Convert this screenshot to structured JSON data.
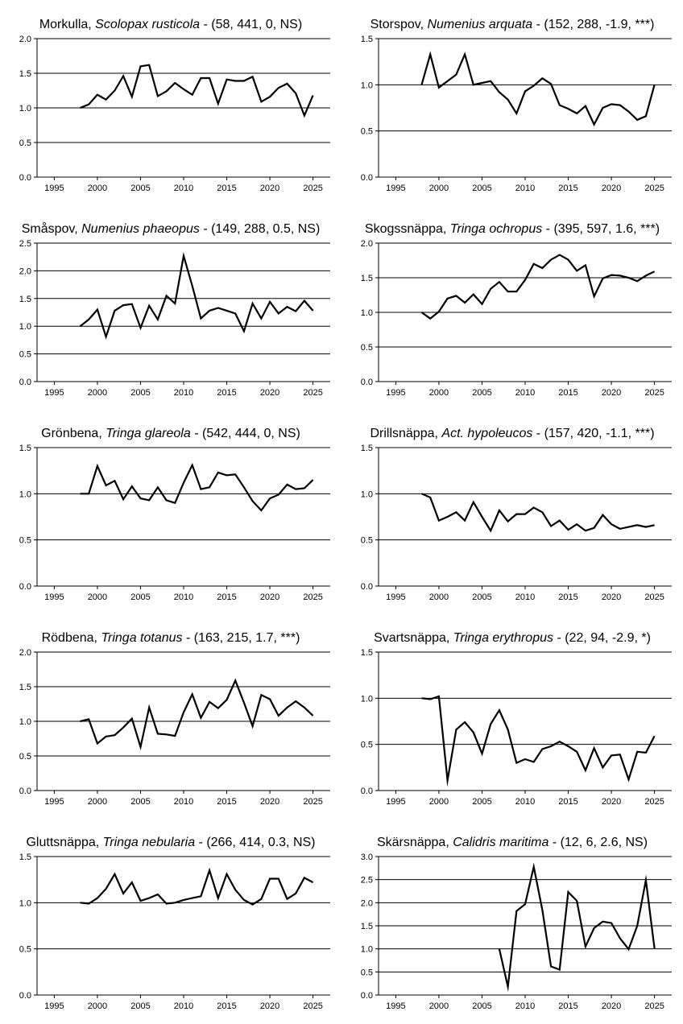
{
  "chart_data": [
    {
      "type": "line",
      "title": {
        "common": "Morkulla",
        "scientific": "Scolopax rusticola",
        "stats": "(58, 441, 0, NS)"
      },
      "ylim": [
        0,
        2
      ],
      "yticks": [
        0,
        0.5,
        1,
        1.5,
        2
      ],
      "ytick_labels": [
        "0.0",
        "0.5",
        "1.0",
        "1.5",
        "2.0"
      ],
      "xlim": [
        1993,
        2027
      ],
      "xticks": [
        1995,
        2000,
        2005,
        2010,
        2015,
        2020,
        2025
      ],
      "xtick_labels": [
        "1995",
        "2000",
        "2005",
        "2010",
        "2015",
        "2020",
        "2025"
      ],
      "grid": "horizontal",
      "x": [
        1998,
        1999,
        2000,
        2001,
        2002,
        2003,
        2004,
        2005,
        2006,
        2007,
        2008,
        2009,
        2010,
        2011,
        2012,
        2013,
        2014,
        2015,
        2016,
        2017,
        2018,
        2019,
        2020,
        2021,
        2022,
        2023,
        2024,
        2025
      ],
      "values": [
        1.0,
        1.05,
        1.19,
        1.12,
        1.25,
        1.46,
        1.16,
        1.6,
        1.62,
        1.17,
        1.24,
        1.36,
        1.27,
        1.19,
        1.43,
        1.43,
        1.06,
        1.41,
        1.39,
        1.39,
        1.45,
        1.09,
        1.16,
        1.29,
        1.35,
        1.21,
        0.89,
        1.18
      ]
    },
    {
      "type": "line",
      "title": {
        "common": "Storspov",
        "scientific": "Numenius arquata",
        "stats": "(152, 288, -1.9, ***)"
      },
      "ylim": [
        0,
        1.5
      ],
      "yticks": [
        0,
        0.5,
        1,
        1.5
      ],
      "ytick_labels": [
        "0.0",
        "0.5",
        "1.0",
        "1.5"
      ],
      "xlim": [
        1993,
        2027
      ],
      "xticks": [
        1995,
        2000,
        2005,
        2010,
        2015,
        2020,
        2025
      ],
      "xtick_labels": [
        "1995",
        "2000",
        "2005",
        "2010",
        "2015",
        "2020",
        "2025"
      ],
      "grid": "horizontal",
      "x": [
        1998,
        1999,
        2000,
        2001,
        2002,
        2003,
        2004,
        2005,
        2006,
        2007,
        2008,
        2009,
        2010,
        2011,
        2012,
        2013,
        2014,
        2015,
        2016,
        2017,
        2018,
        2019,
        2020,
        2021,
        2022,
        2023,
        2024,
        2025
      ],
      "values": [
        1.0,
        1.33,
        0.97,
        1.04,
        1.11,
        1.33,
        1.0,
        1.02,
        1.04,
        0.92,
        0.84,
        0.69,
        0.93,
        0.99,
        1.07,
        1.01,
        0.78,
        0.74,
        0.69,
        0.77,
        0.57,
        0.75,
        0.79,
        0.78,
        0.71,
        0.62,
        0.66,
        1.0
      ]
    },
    {
      "type": "line",
      "title": {
        "common": "Småspov",
        "scientific": "Numenius phaeopus",
        "stats": "(149, 288, 0.5, NS)"
      },
      "ylim": [
        0,
        2.5
      ],
      "yticks": [
        0,
        0.5,
        1,
        1.5,
        2,
        2.5
      ],
      "ytick_labels": [
        "0.0",
        "0.5",
        "1.0",
        "1.5",
        "2.0",
        "2.5"
      ],
      "xlim": [
        1993,
        2027
      ],
      "xticks": [
        1995,
        2000,
        2005,
        2010,
        2015,
        2020,
        2025
      ],
      "xtick_labels": [
        "1995",
        "2000",
        "2005",
        "2010",
        "2015",
        "2020",
        "2025"
      ],
      "grid": "horizontal",
      "x": [
        1998,
        1999,
        2000,
        2001,
        2002,
        2003,
        2004,
        2005,
        2006,
        2007,
        2008,
        2009,
        2010,
        2011,
        2012,
        2013,
        2014,
        2015,
        2016,
        2017,
        2018,
        2019,
        2020,
        2021,
        2022,
        2023,
        2024,
        2025
      ],
      "values": [
        1.0,
        1.12,
        1.3,
        0.81,
        1.28,
        1.38,
        1.4,
        0.97,
        1.37,
        1.12,
        1.55,
        1.41,
        2.27,
        1.73,
        1.14,
        1.28,
        1.33,
        1.28,
        1.23,
        0.91,
        1.41,
        1.14,
        1.44,
        1.23,
        1.35,
        1.27,
        1.46,
        1.28
      ]
    },
    {
      "type": "line",
      "title": {
        "common": "Skogssnäppa",
        "scientific": "Tringa ochropus",
        "stats": "(395, 597, 1.6, ***)"
      },
      "ylim": [
        0,
        2
      ],
      "yticks": [
        0,
        0.5,
        1,
        1.5,
        2
      ],
      "ytick_labels": [
        "0.0",
        "0.5",
        "1.0",
        "1.5",
        "2.0"
      ],
      "xlim": [
        1993,
        2027
      ],
      "xticks": [
        1995,
        2000,
        2005,
        2010,
        2015,
        2020,
        2025
      ],
      "xtick_labels": [
        "1995",
        "2000",
        "2005",
        "2010",
        "2015",
        "2020",
        "2025"
      ],
      "grid": "horizontal",
      "x": [
        1998,
        1999,
        2000,
        2001,
        2002,
        2003,
        2004,
        2005,
        2006,
        2007,
        2008,
        2009,
        2010,
        2011,
        2012,
        2013,
        2014,
        2015,
        2016,
        2017,
        2018,
        2019,
        2020,
        2021,
        2022,
        2023,
        2024,
        2025
      ],
      "values": [
        1.0,
        0.91,
        1.01,
        1.2,
        1.24,
        1.14,
        1.26,
        1.12,
        1.34,
        1.44,
        1.3,
        1.3,
        1.47,
        1.7,
        1.64,
        1.76,
        1.83,
        1.76,
        1.6,
        1.68,
        1.23,
        1.49,
        1.54,
        1.53,
        1.5,
        1.45,
        1.53,
        1.59
      ]
    },
    {
      "type": "line",
      "title": {
        "common": "Grönbena",
        "scientific": "Tringa glareola",
        "stats": "(542, 444, 0, NS)"
      },
      "ylim": [
        0,
        1.5
      ],
      "yticks": [
        0,
        0.5,
        1,
        1.5
      ],
      "ytick_labels": [
        "0.0",
        "0.5",
        "1.0",
        "1.5"
      ],
      "xlim": [
        1993,
        2027
      ],
      "xticks": [
        1995,
        2000,
        2005,
        2010,
        2015,
        2020,
        2025
      ],
      "xtick_labels": [
        "1995",
        "2000",
        "2005",
        "2010",
        "2015",
        "2020",
        "2025"
      ],
      "grid": "horizontal",
      "x": [
        1998,
        1999,
        2000,
        2001,
        2002,
        2003,
        2004,
        2005,
        2006,
        2007,
        2008,
        2009,
        2010,
        2011,
        2012,
        2013,
        2014,
        2015,
        2016,
        2017,
        2018,
        2019,
        2020,
        2021,
        2022,
        2023,
        2024,
        2025
      ],
      "values": [
        1.0,
        1.0,
        1.3,
        1.09,
        1.14,
        0.94,
        1.08,
        0.95,
        0.93,
        1.07,
        0.93,
        0.9,
        1.12,
        1.31,
        1.05,
        1.07,
        1.23,
        1.2,
        1.21,
        1.07,
        0.92,
        0.82,
        0.95,
        0.99,
        1.1,
        1.05,
        1.06,
        1.15
      ]
    },
    {
      "type": "line",
      "title": {
        "common": "Drillsnäppa",
        "scientific": "Act. hypoleucos",
        "stats": "(157, 420, -1.1, ***)"
      },
      "ylim": [
        0,
        1.5
      ],
      "yticks": [
        0,
        0.5,
        1,
        1.5
      ],
      "ytick_labels": [
        "0.0",
        "0.5",
        "1.0",
        "1.5"
      ],
      "xlim": [
        1993,
        2027
      ],
      "xticks": [
        1995,
        2000,
        2005,
        2010,
        2015,
        2020,
        2025
      ],
      "xtick_labels": [
        "1995",
        "2000",
        "2005",
        "2010",
        "2015",
        "2020",
        "2025"
      ],
      "grid": "horizontal",
      "x": [
        1998,
        1999,
        2000,
        2001,
        2002,
        2003,
        2004,
        2005,
        2006,
        2007,
        2008,
        2009,
        2010,
        2011,
        2012,
        2013,
        2014,
        2015,
        2016,
        2017,
        2018,
        2019,
        2020,
        2021,
        2022,
        2023,
        2024,
        2025
      ],
      "values": [
        1.0,
        0.96,
        0.71,
        0.75,
        0.8,
        0.71,
        0.91,
        0.75,
        0.6,
        0.82,
        0.7,
        0.78,
        0.78,
        0.85,
        0.8,
        0.65,
        0.71,
        0.61,
        0.67,
        0.6,
        0.63,
        0.77,
        0.67,
        0.62,
        0.64,
        0.66,
        0.64,
        0.66
      ]
    },
    {
      "type": "line",
      "title": {
        "common": "Rödbena",
        "scientific": "Tringa totanus",
        "stats": "(163, 215, 1.7, ***)"
      },
      "ylim": [
        0,
        2
      ],
      "yticks": [
        0,
        0.5,
        1,
        1.5,
        2
      ],
      "ytick_labels": [
        "0.0",
        "0.5",
        "1.0",
        "1.5",
        "2.0"
      ],
      "xlim": [
        1993,
        2027
      ],
      "xticks": [
        1995,
        2000,
        2005,
        2010,
        2015,
        2020,
        2025
      ],
      "xtick_labels": [
        "1995",
        "2000",
        "2005",
        "2010",
        "2015",
        "2020",
        "2025"
      ],
      "grid": "horizontal",
      "x": [
        1998,
        1999,
        2000,
        2001,
        2002,
        2003,
        2004,
        2005,
        2006,
        2007,
        2008,
        2009,
        2010,
        2011,
        2012,
        2013,
        2014,
        2015,
        2016,
        2017,
        2018,
        2019,
        2020,
        2021,
        2022,
        2023,
        2024,
        2025
      ],
      "values": [
        1.0,
        1.03,
        0.68,
        0.78,
        0.8,
        0.91,
        1.04,
        0.63,
        1.2,
        0.82,
        0.81,
        0.79,
        1.13,
        1.39,
        1.05,
        1.28,
        1.19,
        1.31,
        1.59,
        1.27,
        0.93,
        1.38,
        1.32,
        1.08,
        1.2,
        1.29,
        1.2,
        1.08
      ]
    },
    {
      "type": "line",
      "title": {
        "common": "Svartsnäppa",
        "scientific": "Tringa erythropus",
        "stats": "(22, 94, -2.9, *)"
      },
      "ylim": [
        0,
        1.5
      ],
      "yticks": [
        0,
        0.5,
        1,
        1.5
      ],
      "ytick_labels": [
        "0.0",
        "0.5",
        "1.0",
        "1.5"
      ],
      "xlim": [
        1993,
        2027
      ],
      "xticks": [
        1995,
        2000,
        2005,
        2010,
        2015,
        2020,
        2025
      ],
      "xtick_labels": [
        "1995",
        "2000",
        "2005",
        "2010",
        "2015",
        "2020",
        "2025"
      ],
      "grid": "horizontal",
      "x": [
        1998,
        1999,
        2000,
        2001,
        2002,
        2003,
        2004,
        2005,
        2006,
        2007,
        2008,
        2009,
        2010,
        2011,
        2012,
        2013,
        2014,
        2015,
        2016,
        2017,
        2018,
        2019,
        2020,
        2021,
        2022,
        2023,
        2024,
        2025
      ],
      "values": [
        1.0,
        0.99,
        1.02,
        0.11,
        0.66,
        0.74,
        0.63,
        0.4,
        0.72,
        0.87,
        0.66,
        0.3,
        0.34,
        0.31,
        0.45,
        0.48,
        0.53,
        0.48,
        0.42,
        0.22,
        0.46,
        0.25,
        0.38,
        0.39,
        0.12,
        0.42,
        0.41,
        0.59
      ]
    },
    {
      "type": "line",
      "title": {
        "common": "Gluttsnäppa",
        "scientific": "Tringa nebularia",
        "stats": "(266, 414, 0.3, NS)"
      },
      "ylim": [
        0,
        1.5
      ],
      "yticks": [
        0,
        0.5,
        1,
        1.5
      ],
      "ytick_labels": [
        "0.0",
        "0.5",
        "1.0",
        "1.5"
      ],
      "xlim": [
        1993,
        2027
      ],
      "xticks": [
        1995,
        2000,
        2005,
        2010,
        2015,
        2020,
        2025
      ],
      "xtick_labels": [
        "1995",
        "2000",
        "2005",
        "2010",
        "2015",
        "2020",
        "2025"
      ],
      "grid": "horizontal",
      "x": [
        1998,
        1999,
        2000,
        2001,
        2002,
        2003,
        2004,
        2005,
        2006,
        2007,
        2008,
        2009,
        2010,
        2011,
        2012,
        2013,
        2014,
        2015,
        2016,
        2017,
        2018,
        2019,
        2020,
        2021,
        2022,
        2023,
        2024,
        2025
      ],
      "values": [
        1.0,
        0.99,
        1.05,
        1.15,
        1.31,
        1.1,
        1.22,
        1.02,
        1.05,
        1.09,
        0.99,
        1.0,
        1.03,
        1.05,
        1.07,
        1.35,
        1.05,
        1.31,
        1.14,
        1.03,
        0.98,
        1.04,
        1.26,
        1.26,
        1.04,
        1.1,
        1.27,
        1.22
      ]
    },
    {
      "type": "line",
      "title": {
        "common": "Skärsnäppa",
        "scientific": "Calidris maritima",
        "stats": "(12, 6, 2.6, NS)"
      },
      "ylim": [
        0,
        3
      ],
      "yticks": [
        0,
        0.5,
        1,
        1.5,
        2,
        2.5,
        3
      ],
      "ytick_labels": [
        "0.0",
        "0.5",
        "1.0",
        "1.5",
        "2.0",
        "2.5",
        "3.0"
      ],
      "xlim": [
        1993,
        2027
      ],
      "xticks": [
        1995,
        2000,
        2005,
        2010,
        2015,
        2020,
        2025
      ],
      "xtick_labels": [
        "1995",
        "2000",
        "2005",
        "2010",
        "2015",
        "2020",
        "2025"
      ],
      "grid": "horizontal",
      "x": [
        2007,
        2008,
        2009,
        2010,
        2011,
        2012,
        2013,
        2014,
        2015,
        2016,
        2017,
        2018,
        2019,
        2020,
        2021,
        2022,
        2023,
        2024,
        2025
      ],
      "values": [
        1.0,
        0.18,
        1.82,
        1.97,
        2.78,
        1.84,
        0.62,
        0.55,
        2.23,
        2.04,
        1.05,
        1.45,
        1.59,
        1.56,
        1.23,
        0.99,
        1.5,
        2.49,
        1.01
      ]
    }
  ]
}
